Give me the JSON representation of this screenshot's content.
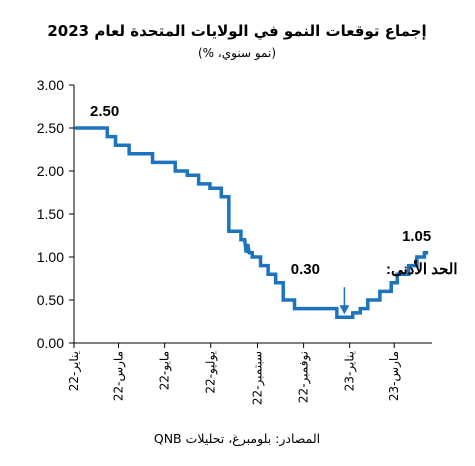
{
  "chart_data": {
    "type": "line",
    "title": "إجماع توقعات النمو في الولايات المتحدة لعام 2023",
    "subtitle": "(نمو سنوي، %)",
    "source": "المصادر: بلومبرغ، تحليلات QNB",
    "xlabel": "",
    "ylabel": "",
    "ylim": [
      0,
      3
    ],
    "y_ticks": [
      "0.00",
      "0.50",
      "1.00",
      "1.50",
      "2.00",
      "2.50",
      "3.00"
    ],
    "x_ticks": [
      "يناير-22",
      "مارس-22",
      "مايو-22",
      "يوليو-22",
      "سبتمبر-22",
      "نوفمبر-22",
      "يناير-23",
      "مارس-23"
    ],
    "x_range": [
      "2022-01-01",
      "2023-04-20"
    ],
    "series": [
      {
        "color": "#1e73be",
        "x": [
          "2022-01-01",
          "2022-02-14",
          "2022-02-14",
          "2022-02-25",
          "2022-02-25",
          "2022-03-15",
          "2022-03-15",
          "2022-04-15",
          "2022-04-15",
          "2022-05-15",
          "2022-05-15",
          "2022-05-31",
          "2022-05-31",
          "2022-06-15",
          "2022-06-15",
          "2022-06-30",
          "2022-06-30",
          "2022-07-15",
          "2022-07-15",
          "2022-07-25",
          "2022-07-25",
          "2022-08-10",
          "2022-08-10",
          "2022-08-15",
          "2022-08-17",
          "2022-08-19",
          "2022-08-21",
          "2022-08-25",
          "2022-08-25",
          "2022-09-05",
          "2022-09-05",
          "2022-09-15",
          "2022-09-15",
          "2022-09-25",
          "2022-09-25",
          "2022-10-05",
          "2022-10-05",
          "2022-10-20",
          "2022-10-20",
          "2022-11-01",
          "2022-11-01",
          "2022-11-15",
          "2022-11-15",
          "2022-12-15",
          "2022-12-15",
          "2023-01-05",
          "2023-01-05",
          "2023-01-15",
          "2023-01-15",
          "2023-01-25",
          "2023-01-25",
          "2023-02-10",
          "2023-02-10",
          "2023-02-25",
          "2023-02-25",
          "2023-03-05",
          "2023-03-05",
          "2023-03-20",
          "2023-03-20",
          "2023-03-31",
          "2023-03-31",
          "2023-04-10",
          "2023-04-10",
          "2023-04-15"
        ],
        "y": [
          2.5,
          2.5,
          2.4,
          2.4,
          2.3,
          2.3,
          2.2,
          2.2,
          2.1,
          2.1,
          2.0,
          2.0,
          1.95,
          1.95,
          1.85,
          1.85,
          1.8,
          1.8,
          1.7,
          1.7,
          1.3,
          1.3,
          1.2,
          1.2,
          1.05,
          1.15,
          1.05,
          1.05,
          1.0,
          1.0,
          0.9,
          0.9,
          0.8,
          0.8,
          0.7,
          0.7,
          0.5,
          0.5,
          0.4,
          0.4,
          0.4,
          0.4,
          0.4,
          0.4,
          0.3,
          0.3,
          0.35,
          0.35,
          0.4,
          0.4,
          0.5,
          0.5,
          0.6,
          0.6,
          0.7,
          0.7,
          0.8,
          0.8,
          0.9,
          0.9,
          1.0,
          1.0,
          1.05,
          1.05
        ]
      }
    ],
    "annotations": {
      "start_value": "2.50",
      "end_value": "1.05",
      "min_label": "الحد الأدنى:",
      "min_value": "0.30",
      "min_point": [
        "2022-12-25",
        0.3
      ]
    }
  }
}
